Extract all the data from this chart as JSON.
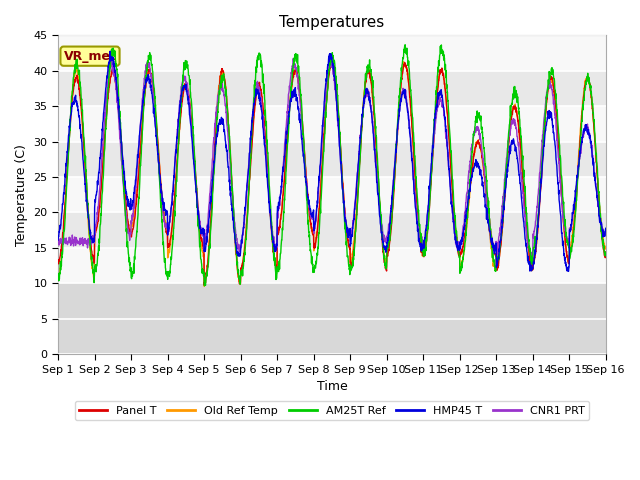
{
  "title": "Temperatures",
  "xlabel": "Time",
  "ylabel": "Temperature (C)",
  "ylim": [
    0,
    45
  ],
  "yticks": [
    0,
    5,
    10,
    15,
    20,
    25,
    30,
    35,
    40,
    45
  ],
  "x_tick_labels": [
    "Sep 1",
    "Sep 2",
    "Sep 3",
    "Sep 4",
    "Sep 5",
    "Sep 6",
    "Sep 7",
    "Sep 8",
    "Sep 9",
    "Sep 10",
    "Sep 11",
    "Sep 12",
    "Sep 13",
    "Sep 14",
    "Sep 15",
    "Sep 16"
  ],
  "annotation_text": "VR_met",
  "colors": {
    "Panel T": "#dd0000",
    "Old Ref Temp": "#ff9900",
    "AM25T Ref": "#00cc00",
    "HMP45 T": "#0000dd",
    "CNR1 PRT": "#9933cc"
  },
  "fig_bg": "#ffffff",
  "plot_bg_upper": "#e8e8e8",
  "plot_bg_lower": "#d8d8d8",
  "grid_color": "#ffffff",
  "title_fontsize": 11,
  "axis_label_fontsize": 9,
  "tick_fontsize": 8,
  "legend_fontsize": 8
}
